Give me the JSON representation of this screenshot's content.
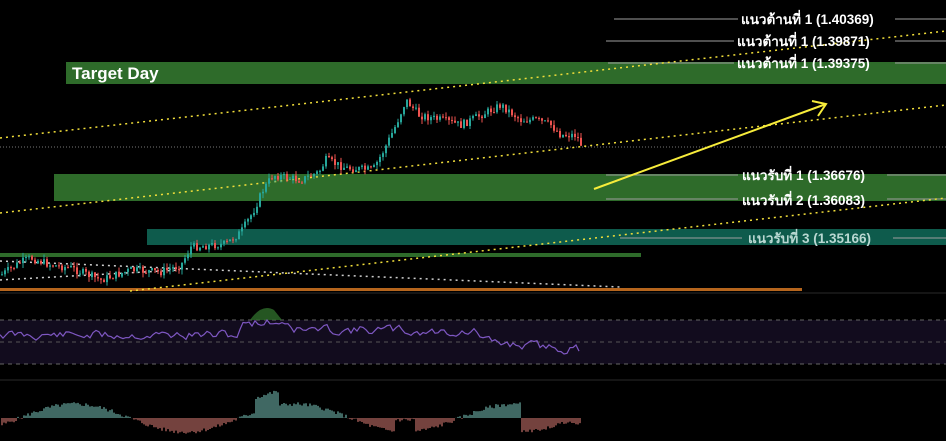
{
  "chart_data": {
    "type": "candlestick",
    "title": "Target Day",
    "resistance": [
      {
        "label": "แนวต้านที่ 1 (1.40369)",
        "value": 1.40369
      },
      {
        "label": "แนวต้านที่ 1 (1.39871)",
        "value": 1.39871
      },
      {
        "label": "แนวต้านที่ 1 (1.39375)",
        "value": 1.39375
      }
    ],
    "support": [
      {
        "label": "แนวรับที่ 1 (1.36676)",
        "value": 1.36676
      },
      {
        "label": "แนวรับที่ 2 (1.36083)",
        "value": 1.36083
      },
      {
        "label": "แนวรับที่ 3 (1.35166)",
        "value": 1.35166
      }
    ],
    "colors": {
      "up": "#26a69a",
      "down": "#ef5350",
      "zone_green": "#2e6b2a",
      "zone_teal": "#0e5b4c",
      "zone_orange": "#b5651d",
      "trend": "#f2df3a",
      "arrow": "#f7ec3b",
      "rsi": "#7e57c2"
    }
  }
}
